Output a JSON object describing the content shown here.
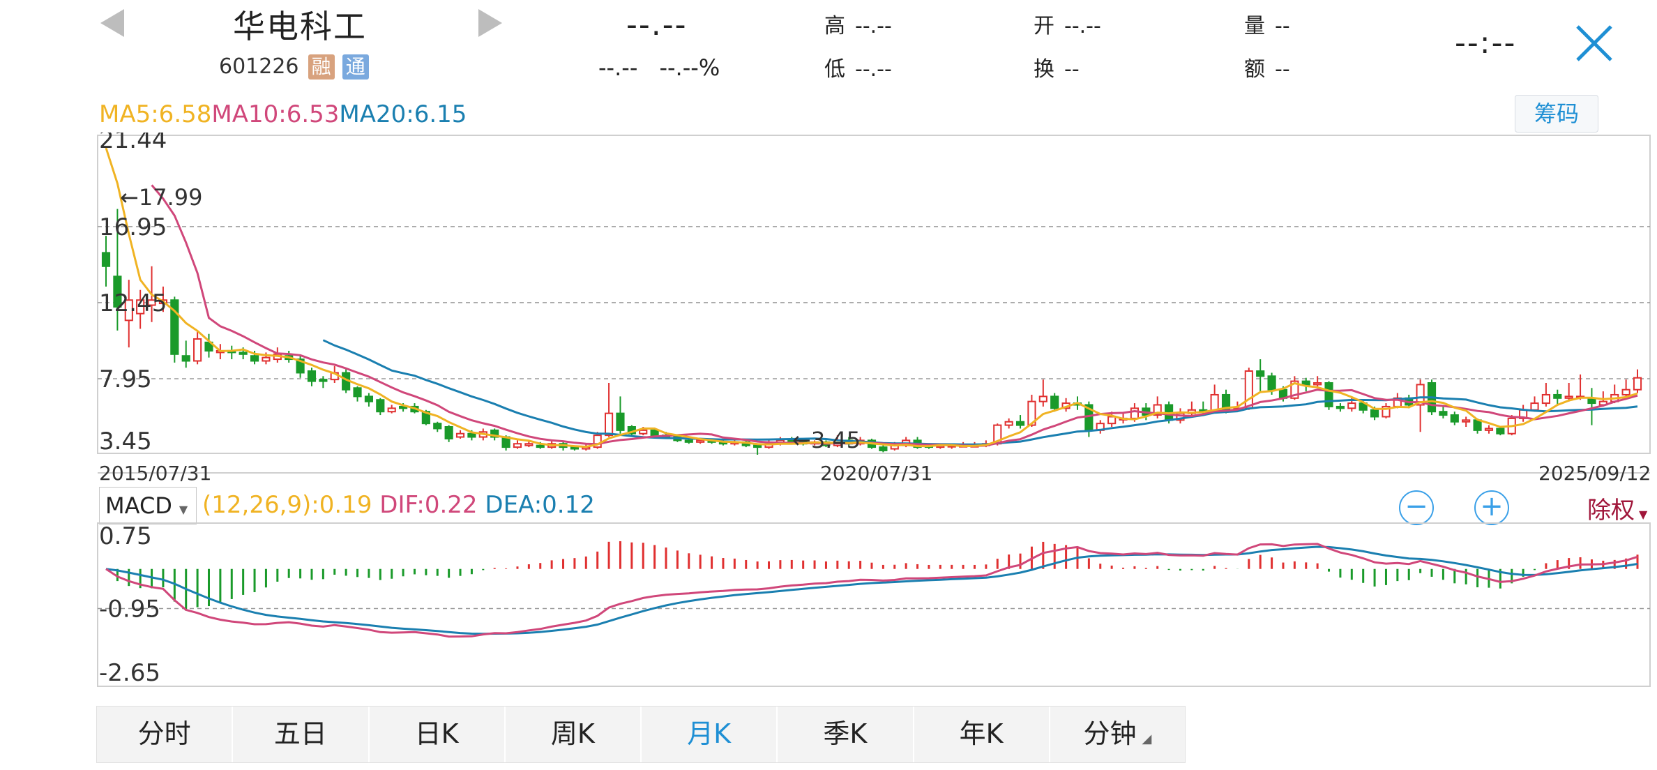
{
  "header": {
    "stock_name": "华电科工",
    "stock_code": "601226",
    "badges": [
      {
        "label": "融",
        "color": "#d8a27e"
      },
      {
        "label": "通",
        "color": "#7aa9de"
      }
    ],
    "price": "--.--",
    "change": "--.--",
    "change_pct": "--.--%",
    "quote": [
      {
        "label": "高",
        "value": "--.--"
      },
      {
        "label": "开",
        "value": "--.--"
      },
      {
        "label": "量",
        "value": "--"
      },
      {
        "label": "低",
        "value": "--.--"
      },
      {
        "label": "换",
        "value": "--"
      },
      {
        "label": "额",
        "value": "--"
      }
    ],
    "time": "--:--",
    "close_icon": "close-icon",
    "prev_icon": "triangle-left-icon",
    "next_icon": "triangle-right-icon"
  },
  "ma": {
    "ma5": "MA5:6.58",
    "ma10": "MA10:6.53",
    "ma20": "MA20:6.15",
    "chip_button": "筹码",
    "colors": {
      "ma5": "#f0b323",
      "ma10": "#d0477a",
      "ma20": "#1a7fb0"
    }
  },
  "kline": {
    "y_labels": [
      "21.44",
      "16.95",
      "12.45",
      "7.95",
      "3.45"
    ],
    "dates": [
      "2015/07/31",
      "2020/07/31",
      "2025/09/12"
    ],
    "high_marker": "←17.99",
    "low_marker": "←3.45",
    "colors": {
      "up": "#e03030",
      "down": "#1a9a2a"
    }
  },
  "macd": {
    "indicator": "MACD",
    "params": "(12,26,9):0.19",
    "dif": "DIF:0.22",
    "dea": "DEA:0.12",
    "y_labels": [
      "0.75",
      "-0.95",
      "-2.65"
    ],
    "zoom_out": "−",
    "zoom_in": "+",
    "adjust": "除权",
    "colors": {
      "params": "#f0b323",
      "dif": "#d0477a",
      "dea": "#1a7fb0",
      "adjust": "#a0163a"
    }
  },
  "tabs": [
    {
      "label": "分时"
    },
    {
      "label": "五日"
    },
    {
      "label": "日K"
    },
    {
      "label": "周K"
    },
    {
      "label": "月K",
      "active": true
    },
    {
      "label": "季K"
    },
    {
      "label": "年K"
    },
    {
      "label": "分钟"
    }
  ],
  "chart_data": {
    "type": "candlestick",
    "title": "",
    "x_dates": [
      "2015/07/31",
      "2020/07/31",
      "2025/09/12"
    ],
    "ylim": [
      3.45,
      21.44
    ],
    "y_ticks": [
      21.44,
      16.95,
      12.45,
      7.95,
      3.45
    ],
    "high": 17.99,
    "low": 3.45,
    "candles": [
      [
        15.4,
        14.6,
        16.4,
        13.4
      ],
      [
        14.0,
        12.2,
        17.99,
        10.8
      ],
      [
        11.4,
        12.6,
        13.8,
        9.8
      ],
      [
        11.8,
        12.6,
        13.2,
        10.9
      ],
      [
        12.3,
        12.6,
        14.6,
        11.3
      ],
      [
        12.4,
        12.6,
        13.4,
        11.9
      ],
      [
        12.6,
        9.4,
        12.8,
        8.9
      ],
      [
        9.3,
        9.0,
        10.2,
        8.6
      ],
      [
        9.0,
        10.3,
        10.8,
        8.8
      ],
      [
        10.1,
        9.6,
        10.6,
        9.2
      ],
      [
        9.5,
        9.6,
        10.0,
        9.1
      ],
      [
        9.6,
        9.5,
        9.9,
        9.1
      ],
      [
        9.5,
        9.4,
        9.8,
        9.1
      ],
      [
        9.3,
        9.0,
        9.6,
        8.8
      ],
      [
        9.0,
        9.2,
        9.5,
        8.8
      ],
      [
        9.1,
        9.4,
        9.8,
        8.9
      ],
      [
        9.3,
        9.1,
        9.6,
        8.9
      ],
      [
        9.1,
        8.3,
        9.3,
        8.0
      ],
      [
        8.4,
        7.8,
        8.6,
        7.5
      ],
      [
        7.9,
        7.8,
        8.1,
        7.4
      ],
      [
        7.9,
        8.3,
        8.7,
        7.7
      ],
      [
        8.3,
        7.3,
        8.5,
        7.1
      ],
      [
        7.4,
        6.9,
        7.5,
        6.6
      ],
      [
        6.9,
        6.6,
        7.1,
        6.3
      ],
      [
        6.7,
        6.0,
        6.8,
        5.8
      ],
      [
        6.0,
        6.2,
        6.4,
        5.9
      ],
      [
        6.3,
        6.2,
        6.5,
        6.0
      ],
      [
        6.3,
        6.0,
        6.5,
        5.9
      ],
      [
        6.0,
        5.3,
        6.1,
        5.2
      ],
      [
        5.3,
        5.0,
        5.4,
        4.8
      ],
      [
        5.1,
        4.4,
        5.2,
        4.2
      ],
      [
        4.5,
        4.7,
        4.9,
        4.4
      ],
      [
        4.7,
        4.5,
        4.9,
        4.3
      ],
      [
        4.5,
        4.8,
        5.0,
        4.3
      ],
      [
        4.9,
        4.5,
        5.0,
        4.3
      ],
      [
        4.5,
        3.9,
        4.6,
        3.7
      ],
      [
        3.9,
        4.1,
        4.3,
        3.8
      ],
      [
        4.0,
        4.1,
        4.3,
        3.9
      ],
      [
        4.0,
        3.9,
        4.2,
        3.8
      ],
      [
        3.9,
        4.1,
        4.3,
        3.8
      ],
      [
        4.1,
        3.9,
        4.2,
        3.7
      ],
      [
        3.9,
        3.8,
        4.0,
        3.7
      ],
      [
        3.8,
        3.9,
        4.1,
        3.7
      ],
      [
        3.9,
        4.6,
        4.8,
        3.8
      ],
      [
        4.6,
        5.9,
        7.7,
        4.5
      ],
      [
        5.9,
        4.9,
        6.9,
        4.7
      ],
      [
        5.1,
        4.7,
        5.2,
        4.5
      ],
      [
        4.7,
        4.9,
        5.1,
        4.6
      ],
      [
        4.9,
        4.6,
        5.0,
        4.4
      ],
      [
        4.6,
        4.5,
        4.8,
        4.4
      ],
      [
        4.5,
        4.3,
        4.6,
        4.2
      ],
      [
        4.3,
        4.2,
        4.4,
        4.1
      ],
      [
        4.2,
        4.3,
        4.4,
        4.1
      ],
      [
        4.3,
        4.2,
        4.4,
        4.1
      ],
      [
        4.2,
        4.1,
        4.3,
        4.0
      ],
      [
        4.1,
        4.2,
        4.3,
        4.0
      ],
      [
        4.2,
        4.0,
        4.3,
        3.9
      ],
      [
        4.0,
        3.9,
        4.1,
        3.45
      ],
      [
        3.9,
        4.1,
        4.3,
        3.8
      ],
      [
        4.1,
        4.3,
        4.5,
        4.0
      ],
      [
        4.3,
        4.2,
        4.5,
        4.1
      ],
      [
        4.2,
        4.1,
        4.4,
        4.0
      ],
      [
        4.1,
        4.2,
        4.3,
        4.0
      ],
      [
        4.2,
        4.0,
        4.3,
        3.9
      ],
      [
        4.0,
        4.3,
        4.6,
        3.9
      ],
      [
        4.3,
        4.1,
        4.5,
        4.0
      ],
      [
        4.1,
        4.3,
        4.5,
        4.0
      ],
      [
        4.3,
        3.9,
        4.4,
        3.8
      ],
      [
        3.9,
        3.7,
        4.1,
        3.6
      ],
      [
        3.8,
        4.0,
        4.2,
        3.7
      ],
      [
        4.0,
        4.3,
        4.5,
        3.9
      ],
      [
        4.3,
        3.9,
        4.5,
        3.8
      ],
      [
        4.0,
        3.9,
        4.1,
        3.8
      ],
      [
        3.9,
        4.0,
        4.1,
        3.8
      ],
      [
        4.0,
        4.0,
        4.1,
        3.8
      ],
      [
        4.0,
        4.0,
        4.2,
        3.9
      ],
      [
        4.0,
        4.0,
        4.2,
        3.9
      ],
      [
        4.0,
        4.1,
        4.3,
        3.9
      ],
      [
        4.1,
        5.2,
        5.3,
        4.0
      ],
      [
        5.2,
        5.4,
        5.6,
        5.0
      ],
      [
        5.4,
        5.2,
        5.8,
        5.0
      ],
      [
        5.2,
        6.6,
        7.0,
        5.1
      ],
      [
        6.6,
        6.9,
        7.9,
        6.3
      ],
      [
        6.9,
        6.2,
        7.1,
        6.0
      ],
      [
        6.2,
        6.5,
        6.8,
        6.0
      ],
      [
        6.5,
        6.4,
        6.9,
        6.1
      ],
      [
        6.4,
        4.9,
        6.6,
        4.5
      ],
      [
        4.9,
        5.3,
        5.5,
        4.7
      ],
      [
        5.3,
        5.7,
        6.0,
        5.1
      ],
      [
        5.6,
        5.6,
        5.9,
        5.3
      ],
      [
        5.6,
        6.2,
        6.5,
        5.4
      ],
      [
        6.2,
        5.8,
        6.5,
        5.5
      ],
      [
        5.8,
        6.4,
        6.9,
        5.6
      ],
      [
        6.4,
        5.5,
        6.6,
        5.3
      ],
      [
        5.5,
        5.9,
        6.2,
        5.3
      ],
      [
        5.9,
        6.1,
        6.6,
        5.7
      ],
      [
        6.1,
        6.0,
        6.6,
        5.8
      ],
      [
        6.0,
        7.0,
        7.6,
        5.9
      ],
      [
        7.0,
        6.1,
        7.3,
        5.9
      ],
      [
        6.1,
        6.2,
        6.6,
        6.0
      ],
      [
        6.2,
        8.4,
        8.6,
        6.1
      ],
      [
        8.4,
        8.1,
        9.1,
        7.2
      ],
      [
        8.1,
        7.3,
        8.3,
        7.0
      ],
      [
        7.3,
        6.8,
        7.5,
        6.6
      ],
      [
        6.8,
        7.8,
        8.1,
        6.7
      ],
      [
        7.8,
        7.6,
        8.0,
        7.2
      ],
      [
        7.6,
        7.7,
        8.1,
        7.4
      ],
      [
        7.7,
        6.3,
        7.8,
        6.1
      ],
      [
        6.3,
        6.2,
        6.5,
        6.0
      ],
      [
        6.2,
        6.5,
        6.8,
        6.0
      ],
      [
        6.5,
        6.1,
        6.7,
        5.9
      ],
      [
        6.1,
        5.7,
        6.3,
        5.5
      ],
      [
        5.7,
        6.3,
        6.5,
        5.6
      ],
      [
        6.3,
        6.8,
        7.1,
        6.2
      ],
      [
        6.8,
        6.4,
        7.0,
        6.2
      ],
      [
        6.4,
        7.6,
        7.9,
        4.8
      ],
      [
        7.7,
        6.0,
        7.9,
        5.8
      ],
      [
        6.0,
        5.8,
        6.4,
        5.6
      ],
      [
        5.8,
        5.4,
        6.0,
        5.2
      ],
      [
        5.4,
        5.5,
        5.7,
        5.1
      ],
      [
        5.5,
        4.9,
        5.6,
        4.7
      ],
      [
        4.9,
        5.0,
        5.2,
        4.7
      ],
      [
        5.0,
        4.7,
        5.1,
        4.6
      ],
      [
        4.7,
        5.6,
        5.8,
        4.6
      ],
      [
        5.6,
        6.1,
        6.4,
        5.4
      ],
      [
        6.1,
        6.5,
        6.9,
        6.0
      ],
      [
        6.5,
        7.0,
        7.7,
        6.3
      ],
      [
        7.0,
        6.8,
        7.3,
        6.4
      ],
      [
        6.8,
        6.9,
        7.7,
        6.6
      ],
      [
        6.9,
        6.9,
        8.2,
        6.7
      ],
      [
        6.8,
        6.5,
        7.4,
        5.2
      ],
      [
        6.4,
        6.6,
        7.2,
        6.3
      ],
      [
        6.6,
        7.0,
        7.6,
        6.5
      ],
      [
        7.0,
        7.3,
        7.9,
        6.8
      ],
      [
        7.3,
        8.0,
        8.5,
        7.1
      ]
    ],
    "ma5_shape": "falls steeply from ~21 to ~12.5 then tracks price down to ~3.9 and back to 6.58",
    "ma_last": {
      "ma5": 6.58,
      "ma10": 6.53,
      "ma20": 6.15
    },
    "macd": {
      "params": "12,26,9",
      "macd": 0.19,
      "dif": 0.22,
      "dea": 0.12,
      "ylim": [
        -2.65,
        0.75
      ],
      "y_ticks": [
        0.75,
        -0.95,
        -2.65
      ]
    }
  }
}
